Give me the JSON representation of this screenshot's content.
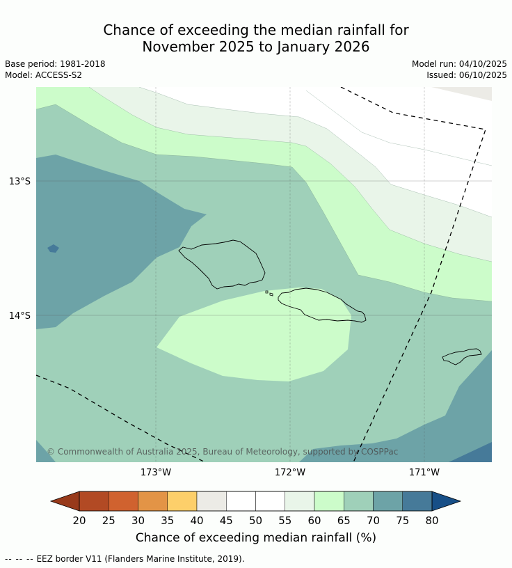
{
  "title": {
    "line1": "Chance of exceeding the median rainfall for",
    "line2": "November 2025 to January 2026"
  },
  "meta": {
    "base_period": "Base period: 1981-2018",
    "model": "Model: ACCESS-S2",
    "model_run": "Model run: 04/10/2025",
    "issued": "Issued: 06/10/2025"
  },
  "map": {
    "lat_labels": [
      "13°S",
      "14°S"
    ],
    "lon_labels": [
      "173°W",
      "172°W",
      "171°W"
    ],
    "copyright": "© Commonwealth of Australia 2025, Bureau of Meteorology, supported by COSPPac"
  },
  "colorbar": {
    "ticks": [
      "20",
      "25",
      "30",
      "35",
      "40",
      "45",
      "50",
      "55",
      "60",
      "65",
      "70",
      "75",
      "80"
    ],
    "colors": [
      "#b24a24",
      "#d0622f",
      "#e39446",
      "#fdcf6a",
      "#ecebe6",
      "#ffffff",
      "#ffffff",
      "#e9f5e9",
      "#ccfcca",
      "#9fd0b9",
      "#6da3a7",
      "#467a99"
    ],
    "under_color": "#983a1b",
    "over_color": "#174f87",
    "label": "Chance of exceeding median rainfall (%)"
  },
  "footnote": {
    "symbol": "-- -- --",
    "text": "EEZ border V11 (Flanders Marine Institute, 2019)."
  },
  "colors": {
    "c70_75": "#6da3a7",
    "c65_70": "#9fd0b9",
    "c60_65": "#ccfcca",
    "c55_60": "#e9f5e9",
    "c50_55": "#ffffff",
    "c40_45": "#ecebe6",
    "c75_80": "#467a99"
  }
}
